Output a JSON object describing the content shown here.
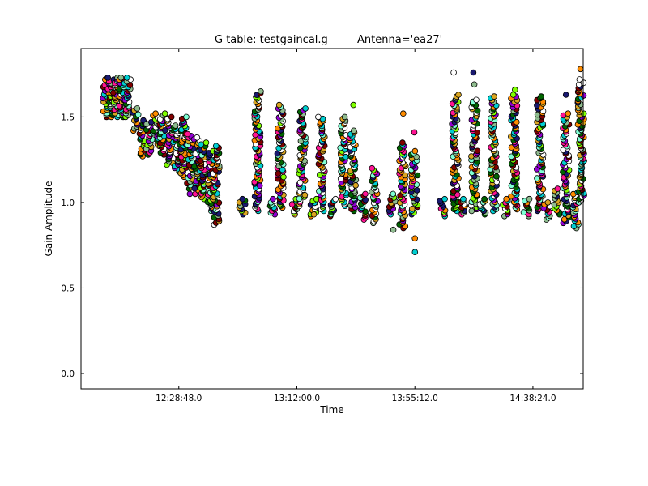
{
  "chart_data": {
    "type": "scatter",
    "title": "G table: testgaincal.g",
    "antenna_label": "Antenna='ea27'",
    "xlabel": "Time",
    "ylabel": "Gain Amplitude",
    "x_tick_labels": [
      "12:28:48.0",
      "13:12:00.0",
      "13:55:12.0",
      "14:38:24.0"
    ],
    "x_tick_seconds": [
      44928,
      47520,
      50112,
      52704
    ],
    "xlim_seconds": [
      42780,
      53808
    ],
    "y_ticks": [
      0.0,
      0.5,
      1.0,
      1.5
    ],
    "y_tick_labels": [
      "0.0",
      "0.5",
      "1.0",
      "1.5"
    ],
    "ylim": [
      -0.09,
      1.9
    ],
    "grid": false,
    "legend": "none",
    "marker": "circle",
    "marker_edge_color": "#000000",
    "series_colors": [
      "#ffffff",
      "#006400",
      "#7fff00",
      "#800000",
      "#00ced1",
      "#9400d3",
      "#ff1493",
      "#191970",
      "#7fffd4",
      "#daa520",
      "#ff8c00",
      "#8fbc8f"
    ],
    "clusters": [
      {
        "t": 43320,
        "low": 1.5,
        "high": 1.73,
        "outliers": []
      },
      {
        "t": 43440,
        "low": 1.5,
        "high": 1.73,
        "outliers": []
      },
      {
        "t": 43560,
        "low": 1.5,
        "high": 1.73,
        "outliers": []
      },
      {
        "t": 43680,
        "low": 1.5,
        "high": 1.73,
        "outliers": []
      },
      {
        "t": 43800,
        "low": 1.5,
        "high": 1.73,
        "outliers": []
      },
      {
        "t": 43980,
        "low": 1.42,
        "high": 1.55,
        "outliers": []
      },
      {
        "t": 44130,
        "low": 1.27,
        "high": 1.48,
        "outliers": []
      },
      {
        "t": 44280,
        "low": 1.28,
        "high": 1.47,
        "outliers": []
      },
      {
        "t": 44430,
        "low": 1.33,
        "high": 1.52,
        "outliers": []
      },
      {
        "t": 44580,
        "low": 1.28,
        "high": 1.52,
        "outliers": []
      },
      {
        "t": 44730,
        "low": 1.22,
        "high": 1.5,
        "outliers": []
      },
      {
        "t": 44880,
        "low": 1.18,
        "high": 1.45,
        "outliers": []
      },
      {
        "t": 45030,
        "low": 1.15,
        "high": 1.5,
        "outliers": []
      },
      {
        "t": 45180,
        "low": 1.08,
        "high": 1.4,
        "outliers": [
          1.05
        ]
      },
      {
        "t": 45330,
        "low": 1.05,
        "high": 1.38,
        "outliers": []
      },
      {
        "t": 45480,
        "low": 1.02,
        "high": 1.35,
        "outliers": []
      },
      {
        "t": 45630,
        "low": 0.95,
        "high": 1.3,
        "outliers": []
      },
      {
        "t": 45750,
        "low": 0.87,
        "high": 1.33,
        "outliers": []
      },
      {
        "t": 46320,
        "low": 0.93,
        "high": 1.02,
        "outliers": []
      },
      {
        "t": 46660,
        "low": 0.95,
        "high": 1.65,
        "outliers": []
      },
      {
        "t": 46980,
        "low": 0.93,
        "high": 1.02,
        "outliers": []
      },
      {
        "t": 47160,
        "low": 0.97,
        "high": 1.57,
        "outliers": []
      },
      {
        "t": 47460,
        "low": 0.93,
        "high": 1.02,
        "outliers": []
      },
      {
        "t": 47640,
        "low": 0.98,
        "high": 1.55,
        "outliers": []
      },
      {
        "t": 47880,
        "low": 0.92,
        "high": 1.02,
        "outliers": [
          0.93
        ]
      },
      {
        "t": 48060,
        "low": 0.95,
        "high": 1.5,
        "outliers": []
      },
      {
        "t": 48300,
        "low": 0.92,
        "high": 1.02,
        "outliers": []
      },
      {
        "t": 48540,
        "low": 0.98,
        "high": 1.5,
        "outliers": []
      },
      {
        "t": 48750,
        "low": 0.95,
        "high": 1.42,
        "outliers": [
          1.57
        ]
      },
      {
        "t": 48960,
        "low": 0.9,
        "high": 1.05,
        "outliers": []
      },
      {
        "t": 49230,
        "low": 0.88,
        "high": 1.2,
        "outliers": []
      },
      {
        "t": 49620,
        "low": 0.93,
        "high": 1.05,
        "outliers": [
          0.84
        ]
      },
      {
        "t": 49840,
        "low": 0.85,
        "high": 1.35,
        "outliers": [
          1.52
        ]
      },
      {
        "t": 50100,
        "low": 0.93,
        "high": 1.3,
        "outliers": [
          0.79,
          0.71,
          1.41
        ]
      },
      {
        "t": 50730,
        "low": 0.92,
        "high": 1.02,
        "outliers": []
      },
      {
        "t": 51000,
        "low": 0.95,
        "high": 1.63,
        "outliers": [
          1.76
        ]
      },
      {
        "t": 51180,
        "low": 0.93,
        "high": 1.02,
        "outliers": []
      },
      {
        "t": 51420,
        "low": 0.95,
        "high": 1.6,
        "outliers": [
          1.76,
          1.69
        ]
      },
      {
        "t": 51600,
        "low": 0.93,
        "high": 1.02,
        "outliers": []
      },
      {
        "t": 51840,
        "low": 0.95,
        "high": 1.62,
        "outliers": []
      },
      {
        "t": 52080,
        "low": 0.92,
        "high": 1.02,
        "outliers": []
      },
      {
        "t": 52290,
        "low": 0.96,
        "high": 1.63,
        "outliers": [
          1.66
        ]
      },
      {
        "t": 52560,
        "low": 0.92,
        "high": 1.02,
        "outliers": []
      },
      {
        "t": 52860,
        "low": 0.95,
        "high": 1.62,
        "outliers": []
      },
      {
        "t": 53010,
        "low": 0.9,
        "high": 1.0,
        "outliers": []
      },
      {
        "t": 53220,
        "low": 0.93,
        "high": 1.08,
        "outliers": []
      },
      {
        "t": 53430,
        "low": 0.88,
        "high": 1.52,
        "outliers": [
          1.63
        ]
      },
      {
        "t": 53640,
        "low": 0.85,
        "high": 1.06,
        "outliers": []
      },
      {
        "t": 53760,
        "low": 1.0,
        "high": 1.7,
        "outliers": [
          1.78,
          1.72
        ]
      }
    ]
  }
}
